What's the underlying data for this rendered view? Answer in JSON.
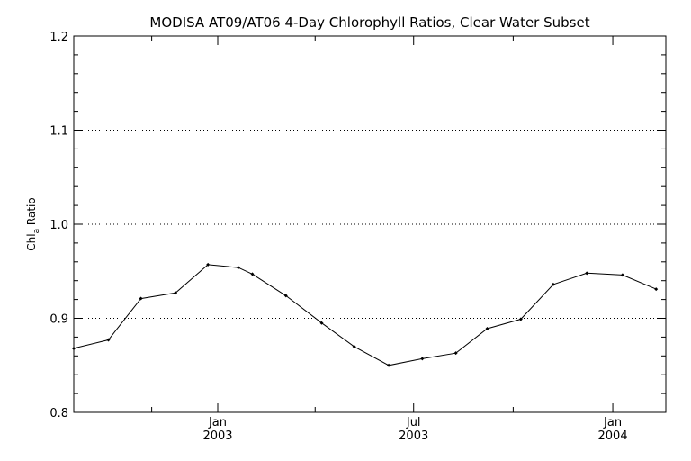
{
  "chart_data": {
    "type": "line",
    "title": "MODISA AT09/AT06 4-Day Chlorophyll Ratios, Clear Water Subset",
    "ylabel_main": "Chl",
    "ylabel_sub": "a",
    "ylabel_rest": " Ratio",
    "ylim": [
      0.8,
      1.2
    ],
    "y_ticks": [
      {
        "value": 0.8,
        "label": "0.8"
      },
      {
        "value": 0.9,
        "label": "0.9"
      },
      {
        "value": 1.0,
        "label": "1.0"
      },
      {
        "value": 1.1,
        "label": "1.1"
      },
      {
        "value": 1.2,
        "label": "1.2"
      }
    ],
    "y_gridlines": [
      0.9,
      1.0,
      1.1
    ],
    "xlim": [
      "2002-08-21",
      "2004-02-19"
    ],
    "x_major_ticks": [
      {
        "date": "2003-01-01",
        "line1": "Jan",
        "line2": "2003"
      },
      {
        "date": "2003-07-01",
        "line1": "Jul",
        "line2": "2003"
      },
      {
        "date": "2004-01-01",
        "line1": "Jan",
        "line2": "2004"
      }
    ],
    "x_minor_ticks": [
      "2002-11-01",
      "2003-04-01",
      "2003-10-01"
    ],
    "series": [
      {
        "points": [
          {
            "x": "2002-08-21",
            "y": 0.868
          },
          {
            "x": "2002-09-22",
            "y": 0.877
          },
          {
            "x": "2002-10-22",
            "y": 0.921
          },
          {
            "x": "2002-11-23",
            "y": 0.927
          },
          {
            "x": "2002-12-23",
            "y": 0.957
          },
          {
            "x": "2003-01-20",
            "y": 0.954
          },
          {
            "x": "2003-02-02",
            "y": 0.947
          },
          {
            "x": "2003-03-05",
            "y": 0.924
          },
          {
            "x": "2003-04-07",
            "y": 0.895
          },
          {
            "x": "2003-05-07",
            "y": 0.87
          },
          {
            "x": "2003-06-08",
            "y": 0.85
          },
          {
            "x": "2003-07-09",
            "y": 0.857
          },
          {
            "x": "2003-08-09",
            "y": 0.863
          },
          {
            "x": "2003-09-07",
            "y": 0.889
          },
          {
            "x": "2003-10-08",
            "y": 0.899
          },
          {
            "x": "2003-11-07",
            "y": 0.936
          },
          {
            "x": "2003-12-08",
            "y": 0.948
          },
          {
            "x": "2004-01-10",
            "y": 0.946
          },
          {
            "x": "2004-02-10",
            "y": 0.931
          }
        ]
      }
    ]
  }
}
